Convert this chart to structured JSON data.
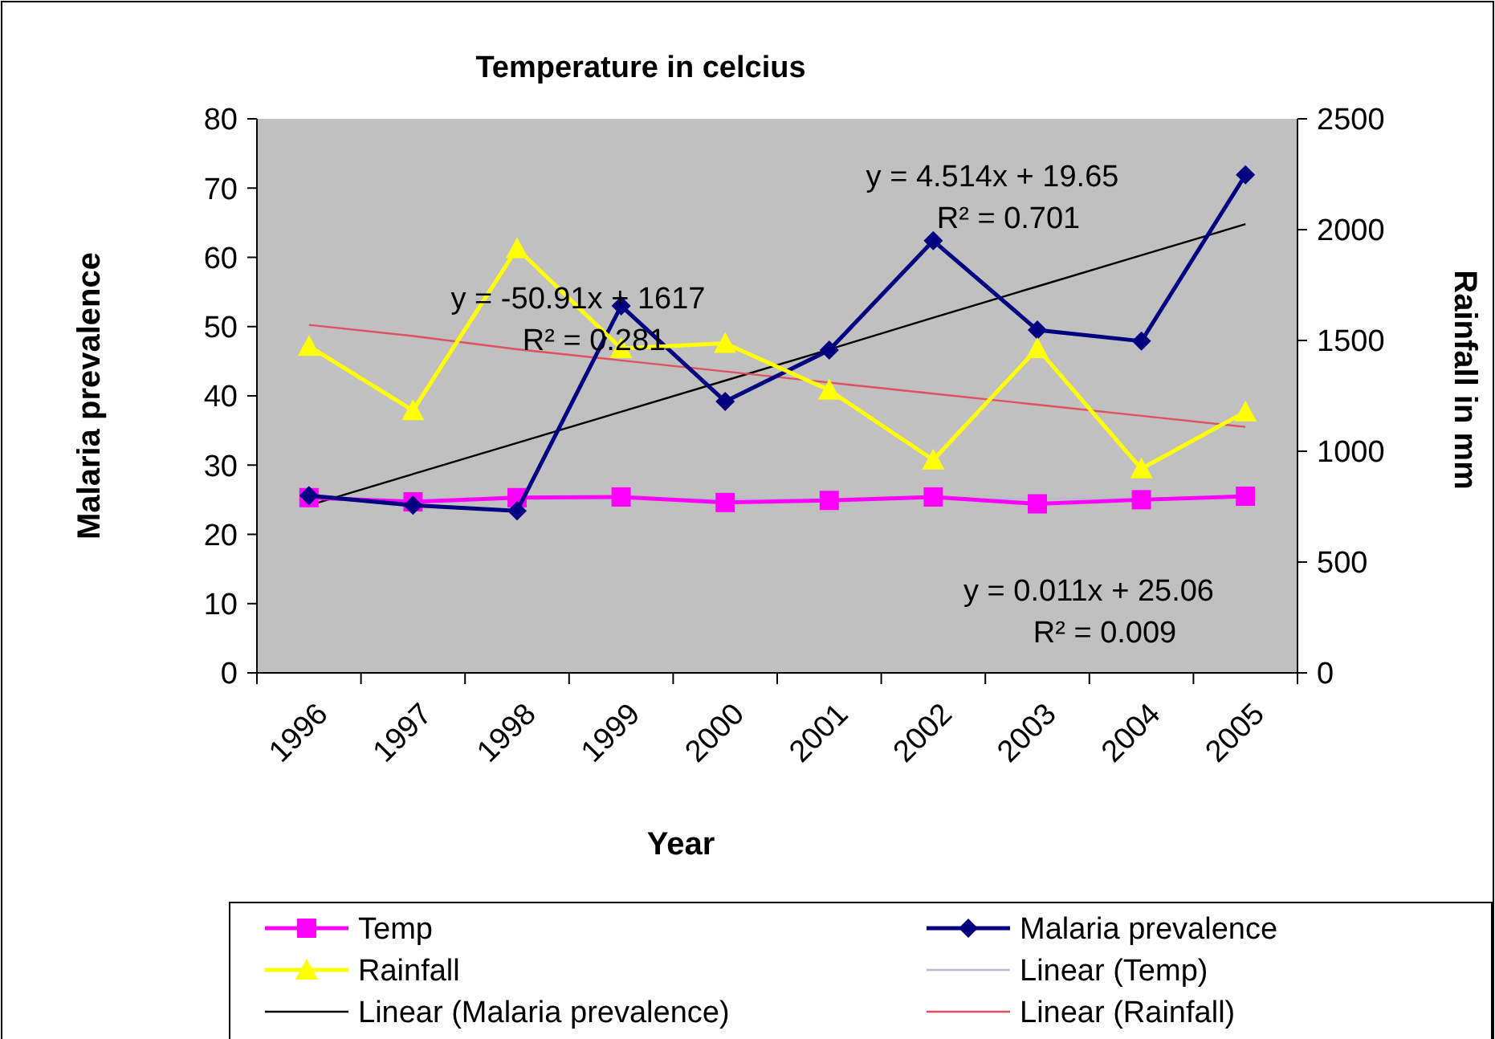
{
  "chart_data": {
    "type": "line",
    "title": "Temperature in celcius",
    "xlabel": "Year",
    "ylabel": "Malaria prevalence",
    "y2label": "Rainfall in mm",
    "categories": [
      "1996",
      "1997",
      "1998",
      "1999",
      "2000",
      "2001",
      "2002",
      "2003",
      "2004",
      "2005"
    ],
    "series": [
      {
        "name": "Temp",
        "color": "#ff00ff",
        "marker": "square",
        "values": [
          25.3,
          24.7,
          25.3,
          25.4,
          24.6,
          24.9,
          25.4,
          24.4,
          25.0,
          25.5
        ]
      },
      {
        "name": "Malaria prevalence",
        "color": "#000080",
        "marker": "diamond",
        "values": [
          25.6,
          24.2,
          23.4,
          53.0,
          39.2,
          46.6,
          62.4,
          49.5,
          47.9,
          71.9
        ]
      },
      {
        "name": "Rainfall",
        "color": "#ffff00",
        "marker": "triangle",
        "axis": "y2",
        "values": [
          1474,
          1184,
          1915,
          1464,
          1487,
          1276,
          961,
          1464,
          921,
          1178
        ]
      },
      {
        "name": "Linear (Temp)",
        "color": "#b8b8d0",
        "marker": "none",
        "values": [
          25.1,
          25.1,
          25.1,
          25.1,
          25.1,
          25.1,
          25.1,
          25.2,
          25.2,
          25.2
        ]
      },
      {
        "name": "Linear (Malaria prevalence)",
        "color": "#000000",
        "marker": "none",
        "values": [
          24.2,
          28.7,
          33.2,
          37.7,
          42.2,
          46.7,
          51.3,
          55.8,
          60.3,
          64.8
        ]
      },
      {
        "name": "Linear (Rainfall)",
        "color": "#e05060",
        "marker": "none",
        "axis": "y2",
        "values": [
          1570,
          1520,
          1460,
          1410,
          1360,
          1310,
          1260,
          1210,
          1160,
          1110
        ]
      }
    ],
    "ylim": [
      0,
      80
    ],
    "yticks": [
      0,
      10,
      20,
      30,
      40,
      50,
      60,
      70,
      80
    ],
    "y2lim": [
      0,
      2500
    ],
    "y2ticks": [
      0,
      500,
      1000,
      1500,
      2000,
      2500
    ],
    "annotations": [
      "y = 4.514x + 19.65\nR² = 0.701",
      "y = -50.91x + 1617\nR² = 0.281",
      "y = 0.011x + 25.06\nR² = 0.009"
    ],
    "grid": false,
    "legend": "bottom"
  }
}
